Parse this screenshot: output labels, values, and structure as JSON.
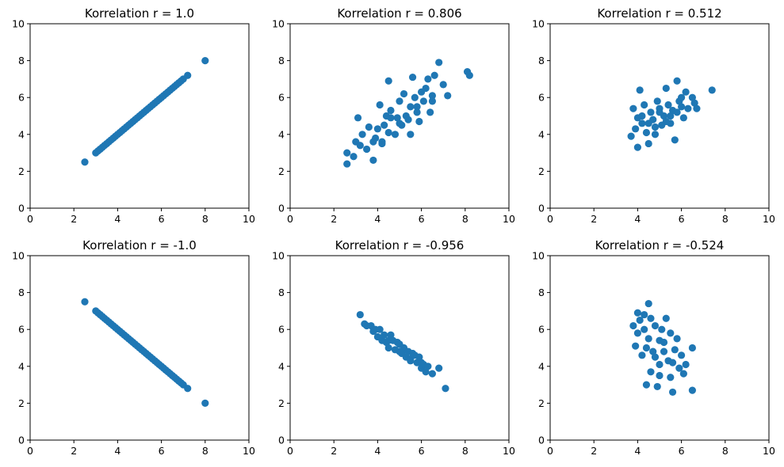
{
  "chart_data": [
    {
      "type": "scatter",
      "title": "Korrelation r = 1.0",
      "xlim": [
        0,
        10
      ],
      "ylim": [
        0,
        10
      ],
      "xticks": [
        "0",
        "2",
        "4",
        "6",
        "8",
        "10"
      ],
      "yticks": [
        "0",
        "2",
        "4",
        "6",
        "8",
        "10"
      ],
      "color": "#1f77b4",
      "x": [
        2.5,
        3.0,
        3.1,
        3.2,
        3.3,
        3.4,
        3.5,
        3.6,
        3.7,
        3.8,
        3.9,
        4.0,
        4.1,
        4.2,
        4.3,
        4.4,
        4.5,
        4.6,
        4.7,
        4.8,
        4.9,
        5.0,
        5.1,
        5.2,
        5.3,
        5.4,
        5.5,
        5.6,
        5.7,
        5.8,
        5.9,
        6.0,
        6.1,
        6.2,
        6.3,
        6.4,
        6.5,
        6.6,
        6.7,
        6.8,
        6.9,
        7.0,
        7.2,
        8.0
      ],
      "y": [
        2.5,
        3.0,
        3.1,
        3.2,
        3.3,
        3.4,
        3.5,
        3.6,
        3.7,
        3.8,
        3.9,
        4.0,
        4.1,
        4.2,
        4.3,
        4.4,
        4.5,
        4.6,
        4.7,
        4.8,
        4.9,
        5.0,
        5.1,
        5.2,
        5.3,
        5.4,
        5.5,
        5.6,
        5.7,
        5.8,
        5.9,
        6.0,
        6.1,
        6.2,
        6.3,
        6.4,
        6.5,
        6.6,
        6.7,
        6.8,
        6.9,
        7.0,
        7.2,
        8.0
      ]
    },
    {
      "type": "scatter",
      "title": "Korrelation r = 0.806",
      "xlim": [
        0,
        10
      ],
      "ylim": [
        0,
        10
      ],
      "xticks": [
        "0",
        "2",
        "4",
        "6",
        "8",
        "10"
      ],
      "yticks": [
        "0",
        "2",
        "4",
        "6",
        "8",
        "10"
      ],
      "color": "#1f77b4",
      "x": [
        2.6,
        2.6,
        2.9,
        3.1,
        3.0,
        3.3,
        3.5,
        3.6,
        3.8,
        3.9,
        4.0,
        4.1,
        4.2,
        4.3,
        4.4,
        4.5,
        4.5,
        4.6,
        4.8,
        4.9,
        5.0,
        5.1,
        5.2,
        5.3,
        5.4,
        5.5,
        5.6,
        5.7,
        5.8,
        5.9,
        6.0,
        6.1,
        6.2,
        6.3,
        6.4,
        6.5,
        6.6,
        6.8,
        7.0,
        7.2,
        8.1,
        8.2,
        3.2,
        4.2,
        5.0,
        5.8,
        6.5,
        3.8,
        4.6,
        5.5
      ],
      "y": [
        2.4,
        3.0,
        2.8,
        4.9,
        3.6,
        4.0,
        3.2,
        4.4,
        2.6,
        3.8,
        4.3,
        5.6,
        3.6,
        4.5,
        5.0,
        6.9,
        4.1,
        5.3,
        4.0,
        4.9,
        5.8,
        4.5,
        6.2,
        5.0,
        4.8,
        5.5,
        7.1,
        6.0,
        5.5,
        4.7,
        6.3,
        5.8,
        6.5,
        7.0,
        5.2,
        6.1,
        7.2,
        7.9,
        6.7,
        6.1,
        7.4,
        7.2,
        3.4,
        3.5,
        4.6,
        5.2,
        5.8,
        3.6,
        4.9,
        4.0
      ]
    },
    {
      "type": "scatter",
      "title": "Korrelation r = 0.512",
      "xlim": [
        0,
        10
      ],
      "ylim": [
        0,
        10
      ],
      "xticks": [
        "0",
        "2",
        "4",
        "6",
        "8",
        "10"
      ],
      "yticks": [
        "0",
        "2",
        "4",
        "6",
        "8",
        "10"
      ],
      "color": "#1f77b4",
      "x": [
        3.7,
        3.8,
        3.9,
        4.0,
        4.0,
        4.1,
        4.2,
        4.3,
        4.4,
        4.5,
        4.6,
        4.7,
        4.8,
        4.9,
        5.0,
        5.1,
        5.2,
        5.3,
        5.4,
        5.5,
        5.6,
        5.7,
        5.8,
        5.9,
        6.0,
        6.1,
        6.2,
        6.3,
        6.5,
        6.6,
        6.7,
        7.4,
        4.5,
        5.0,
        5.5,
        6.0,
        4.2,
        4.8,
        5.3,
        5.8
      ],
      "y": [
        3.9,
        5.4,
        4.3,
        3.3,
        4.9,
        6.4,
        4.6,
        5.6,
        4.1,
        3.5,
        5.2,
        4.8,
        4.0,
        5.8,
        5.4,
        4.5,
        5.0,
        6.5,
        5.6,
        4.6,
        5.3,
        3.7,
        6.9,
        5.8,
        6.0,
        4.9,
        6.3,
        5.4,
        6.0,
        5.7,
        5.4,
        6.4,
        4.6,
        5.2,
        5.0,
        5.5,
        5.0,
        4.4,
        4.7,
        5.2
      ]
    },
    {
      "type": "scatter",
      "title": "Korrelation r = -1.0",
      "xlim": [
        0,
        10
      ],
      "ylim": [
        0,
        10
      ],
      "xticks": [
        "0",
        "2",
        "4",
        "6",
        "8",
        "10"
      ],
      "yticks": [
        "0",
        "2",
        "4",
        "6",
        "8",
        "10"
      ],
      "color": "#1f77b4",
      "x": [
        2.5,
        3.0,
        3.1,
        3.2,
        3.3,
        3.4,
        3.5,
        3.6,
        3.7,
        3.8,
        3.9,
        4.0,
        4.1,
        4.2,
        4.3,
        4.4,
        4.5,
        4.6,
        4.7,
        4.8,
        4.9,
        5.0,
        5.1,
        5.2,
        5.3,
        5.4,
        5.5,
        5.6,
        5.7,
        5.8,
        5.9,
        6.0,
        6.1,
        6.2,
        6.3,
        6.4,
        6.5,
        6.6,
        6.7,
        6.8,
        6.9,
        7.0,
        7.2,
        8.0
      ],
      "y": [
        7.5,
        7.0,
        6.9,
        6.8,
        6.7,
        6.6,
        6.5,
        6.4,
        6.3,
        6.2,
        6.1,
        6.0,
        5.9,
        5.8,
        5.7,
        5.6,
        5.5,
        5.4,
        5.3,
        5.2,
        5.1,
        5.0,
        4.9,
        4.8,
        4.7,
        4.6,
        4.5,
        4.4,
        4.3,
        4.2,
        4.1,
        4.0,
        3.9,
        3.8,
        3.7,
        3.6,
        3.5,
        3.4,
        3.3,
        3.2,
        3.1,
        3.0,
        2.8,
        2.0
      ]
    },
    {
      "type": "scatter",
      "title": "Korrelation r = -0.956",
      "xlim": [
        0,
        10
      ],
      "ylim": [
        0,
        10
      ],
      "xticks": [
        "0",
        "2",
        "4",
        "6",
        "8",
        "10"
      ],
      "yticks": [
        "0",
        "2",
        "4",
        "6",
        "8",
        "10"
      ],
      "color": "#1f77b4",
      "x": [
        3.2,
        3.4,
        3.5,
        3.7,
        3.8,
        3.9,
        4.0,
        4.1,
        4.2,
        4.3,
        4.4,
        4.5,
        4.6,
        4.7,
        4.8,
        4.9,
        5.0,
        5.1,
        5.2,
        5.3,
        5.4,
        5.5,
        5.6,
        5.7,
        5.8,
        5.9,
        6.0,
        6.1,
        6.2,
        6.3,
        6.5,
        6.8,
        7.1,
        4.5,
        5.0,
        5.5,
        6.0
      ],
      "y": [
        6.8,
        6.3,
        6.2,
        6.2,
        5.9,
        6.0,
        5.6,
        6.0,
        5.4,
        5.7,
        5.3,
        5.0,
        5.7,
        5.4,
        4.9,
        5.3,
        5.2,
        4.7,
        5.0,
        4.5,
        4.8,
        4.4,
        4.7,
        4.6,
        4.2,
        4.5,
        3.9,
        4.1,
        3.7,
        4.0,
        3.6,
        3.9,
        2.8,
        5.4,
        4.8,
        4.3,
        4.2
      ]
    },
    {
      "type": "scatter",
      "title": "Korrelation r = -0.524",
      "xlim": [
        0,
        10
      ],
      "ylim": [
        0,
        10
      ],
      "xticks": [
        "0",
        "2",
        "4",
        "6",
        "8",
        "10"
      ],
      "yticks": [
        "0",
        "2",
        "4",
        "6",
        "8",
        "10"
      ],
      "color": "#1f77b4",
      "x": [
        3.8,
        3.9,
        4.0,
        4.0,
        4.1,
        4.2,
        4.3,
        4.4,
        4.5,
        4.5,
        4.6,
        4.6,
        4.7,
        4.8,
        4.9,
        5.0,
        5.0,
        5.1,
        5.2,
        5.3,
        5.4,
        5.5,
        5.5,
        5.6,
        5.7,
        5.8,
        5.9,
        6.0,
        6.1,
        6.2,
        6.5,
        6.5,
        4.4,
        4.8,
        5.2,
        5.6,
        5.0,
        4.3
      ],
      "y": [
        6.2,
        5.1,
        6.9,
        5.8,
        6.5,
        4.6,
        6.0,
        3.0,
        7.4,
        5.5,
        6.6,
        3.7,
        4.8,
        6.2,
        2.9,
        5.4,
        4.1,
        6.0,
        5.3,
        6.6,
        4.3,
        5.8,
        3.4,
        2.6,
        4.9,
        5.5,
        3.9,
        4.6,
        3.6,
        4.1,
        5.0,
        2.7,
        5.0,
        4.5,
        4.8,
        4.2,
        3.5,
        6.8
      ]
    }
  ]
}
